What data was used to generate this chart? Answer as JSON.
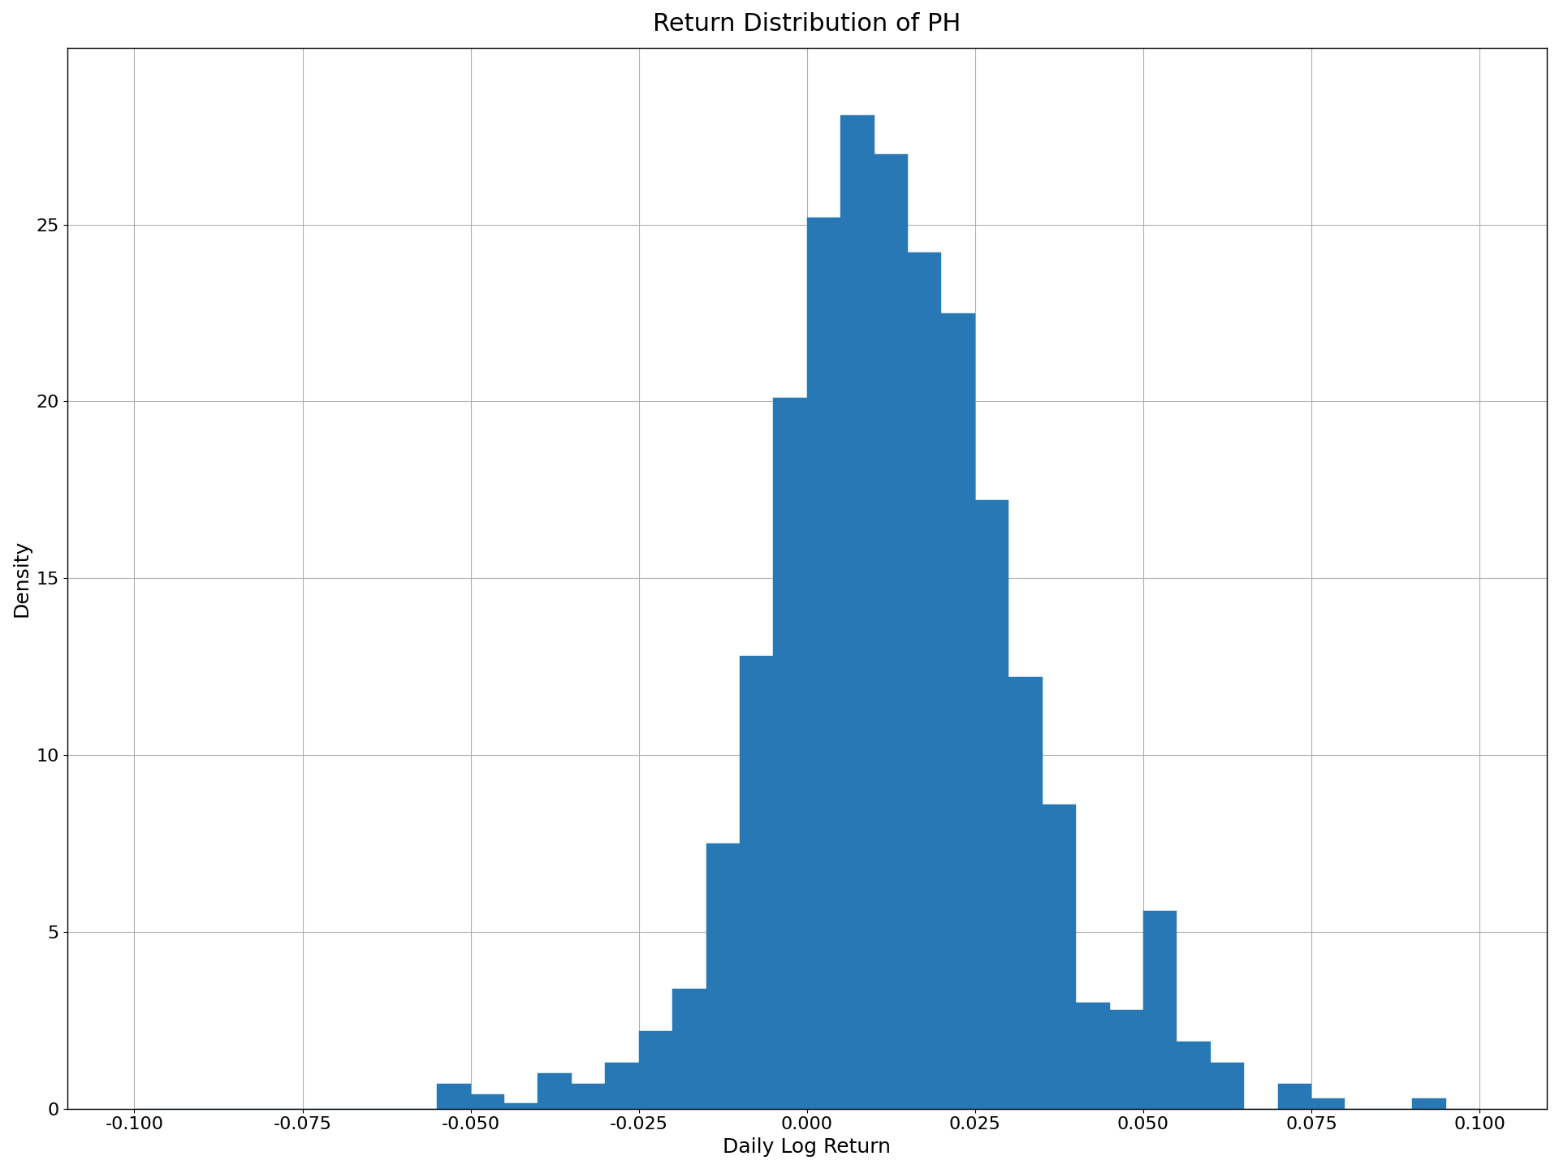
{
  "title": "Return Distribution of PH",
  "xlabel": "Daily Log Return",
  "ylabel": "Density",
  "xlim": [
    -0.11,
    0.11
  ],
  "ylim": [
    0,
    30
  ],
  "bar_color": "#2878b5",
  "bar_edgecolor": "#2878b5",
  "bin_width": 0.005,
  "bin_left_edges": [
    -0.1,
    -0.095,
    -0.09,
    -0.085,
    -0.08,
    -0.075,
    -0.07,
    -0.065,
    -0.06,
    -0.055,
    -0.05,
    -0.045,
    -0.04,
    -0.035,
    -0.03,
    -0.025,
    -0.02,
    -0.015,
    -0.01,
    -0.005,
    0.0,
    0.005,
    0.01,
    0.015,
    0.02,
    0.025,
    0.03,
    0.035,
    0.04,
    0.045,
    0.05,
    0.055,
    0.06,
    0.065,
    0.07,
    0.075,
    0.08,
    0.085,
    0.09,
    0.095
  ],
  "density_heights": [
    0.0,
    0.0,
    0.0,
    0.0,
    0.0,
    0.0,
    0.0,
    0.0,
    0.0,
    0.7,
    0.4,
    0.15,
    1.0,
    0.7,
    1.3,
    2.2,
    3.4,
    7.5,
    12.8,
    20.1,
    25.2,
    28.1,
    27.0,
    24.2,
    22.5,
    17.2,
    12.2,
    8.6,
    3.0,
    2.8,
    5.6,
    1.9,
    1.3,
    0.0,
    0.7,
    0.3,
    0.0,
    0.0,
    0.3,
    0.0
  ],
  "figsize": [
    19.2,
    14.4
  ],
  "dpi": 100,
  "title_fontsize": 22,
  "label_fontsize": 18,
  "tick_fontsize": 16,
  "grid_color": "#b0b0b0",
  "grid_linewidth": 0.8,
  "background_color": "#ffffff",
  "yticks": [
    0,
    5,
    10,
    15,
    20,
    25
  ],
  "xticks": [
    -0.1,
    -0.075,
    -0.05,
    -0.025,
    0.0,
    0.025,
    0.05,
    0.075,
    0.1
  ]
}
